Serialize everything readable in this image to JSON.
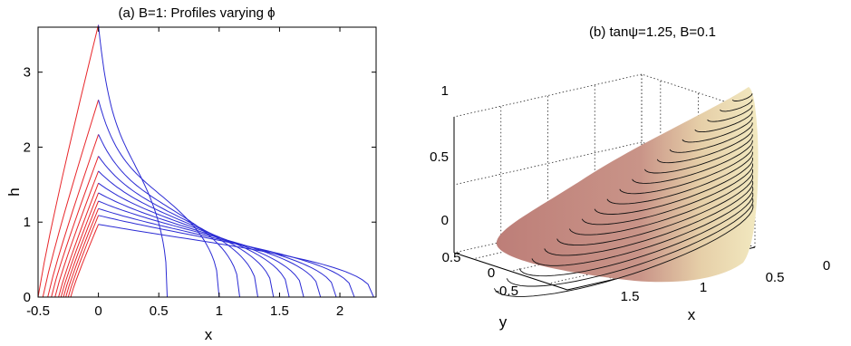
{
  "chart_data": [
    {
      "type": "line",
      "title": "(a) B=1: Profiles varying ϕ",
      "xlabel": "x",
      "ylabel": "h",
      "xlim": [
        -0.5,
        2.3
      ],
      "ylim": [
        0,
        3.6
      ],
      "xticks": [
        -0.5,
        0,
        0.5,
        1,
        1.5,
        2
      ],
      "xtick_labels": [
        "-0.5",
        "0",
        "0.5",
        "1",
        "1.5",
        "2"
      ],
      "yticks": [
        0,
        1,
        2,
        3
      ],
      "ytick_labels": [
        "0",
        "1",
        "2",
        "3"
      ],
      "grid": false,
      "series": [
        {
          "color": "#e8262a",
          "rear": -0.5,
          "peak": 3.63
        },
        {
          "color": "#e8262a",
          "rear": -0.46,
          "peak": 2.63
        },
        {
          "color": "#e8262a",
          "rear": -0.42,
          "peak": 2.17
        },
        {
          "color": "#e8262a",
          "rear": -0.39,
          "peak": 1.88
        },
        {
          "color": "#e8262a",
          "rear": -0.36,
          "peak": 1.68
        },
        {
          "color": "#e8262a",
          "rear": -0.33,
          "peak": 1.52
        },
        {
          "color": "#e8262a",
          "rear": -0.31,
          "peak": 1.39
        },
        {
          "color": "#e8262a",
          "rear": -0.29,
          "peak": 1.28
        },
        {
          "color": "#e8262a",
          "rear": -0.27,
          "peak": 1.18
        },
        {
          "color": "#e8262a",
          "rear": -0.25,
          "peak": 1.09
        },
        {
          "color": "#e8262a",
          "rear": -0.23,
          "peak": 0.97
        },
        {
          "color": "#2b2bd4",
          "front": 0.57,
          "peak": 3.63
        },
        {
          "color": "#2b2bd4",
          "front": 1.0,
          "peak": 2.63
        },
        {
          "color": "#2b2bd4",
          "front": 1.17,
          "peak": 2.17
        },
        {
          "color": "#2b2bd4",
          "front": 1.32,
          "peak": 1.88
        },
        {
          "color": "#2b2bd4",
          "front": 1.45,
          "peak": 1.68
        },
        {
          "color": "#2b2bd4",
          "front": 1.58,
          "peak": 1.52
        },
        {
          "color": "#2b2bd4",
          "front": 1.7,
          "peak": 1.39
        },
        {
          "color": "#2b2bd4",
          "front": 1.84,
          "peak": 1.28
        },
        {
          "color": "#2b2bd4",
          "front": 1.97,
          "peak": 1.18
        },
        {
          "color": "#2b2bd4",
          "front": 2.12,
          "peak": 1.09
        },
        {
          "color": "#2b2bd4",
          "front": 2.28,
          "peak": 0.97
        }
      ]
    },
    {
      "type": "surface",
      "title": "(b) tanψ=1.25, B=0.1",
      "xlabel": "x",
      "ylabel": "y",
      "xlim": [
        0,
        2
      ],
      "ylim": [
        -0.75,
        0.75
      ],
      "zlim": [
        0,
        1
      ],
      "xticks": [
        0,
        0.5,
        1,
        1.5
      ],
      "xtick_labels": [
        "0",
        "0.5",
        "1",
        "1.5"
      ],
      "yticks": [
        -0.5,
        0,
        0.5
      ],
      "ytick_labels": [
        "-0.5",
        "0",
        "0.5"
      ],
      "zticks": [
        0,
        0.5,
        1
      ],
      "ztick_labels": [
        "0",
        "0.5",
        "1"
      ],
      "grid": true,
      "contour_count": 20,
      "colors": {
        "shade_dark": "#bd7e78",
        "shade_light": "#f2e9c0",
        "contour": "#111111"
      }
    }
  ]
}
